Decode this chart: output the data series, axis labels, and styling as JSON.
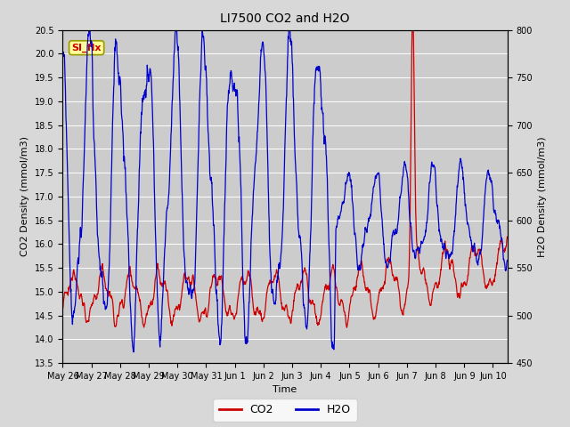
{
  "title": "LI7500 CO2 and H2O",
  "xlabel": "Time",
  "ylabel_left": "CO2 Density (mmol/m3)",
  "ylabel_right": "H2O Density (mmol/m3)",
  "ylim_left": [
    13.5,
    20.5
  ],
  "ylim_right": [
    450,
    800
  ],
  "co2_color": "#cc0000",
  "h2o_color": "#0000cc",
  "legend_co2": "CO2",
  "legend_h2o": "H2O",
  "annotation_text": "SI_flx",
  "annotation_bg": "#ffff99",
  "annotation_border": "#999900",
  "annotation_text_color": "#cc0000",
  "fig_bg": "#d8d8d8",
  "plot_bg": "#cccccc",
  "grid_color": "#bbbbbb",
  "xtick_labels": [
    "May 26",
    "May 27",
    "May 28",
    "May 29",
    "May 30",
    "May 31",
    "Jun 1",
    "Jun 2",
    "Jun 3",
    "Jun 4",
    "Jun 5",
    "Jun 6",
    "Jun 7",
    "Jun 8",
    "Jun 9",
    "Jun 10"
  ],
  "n_points": 1500,
  "end_day": 15.5
}
